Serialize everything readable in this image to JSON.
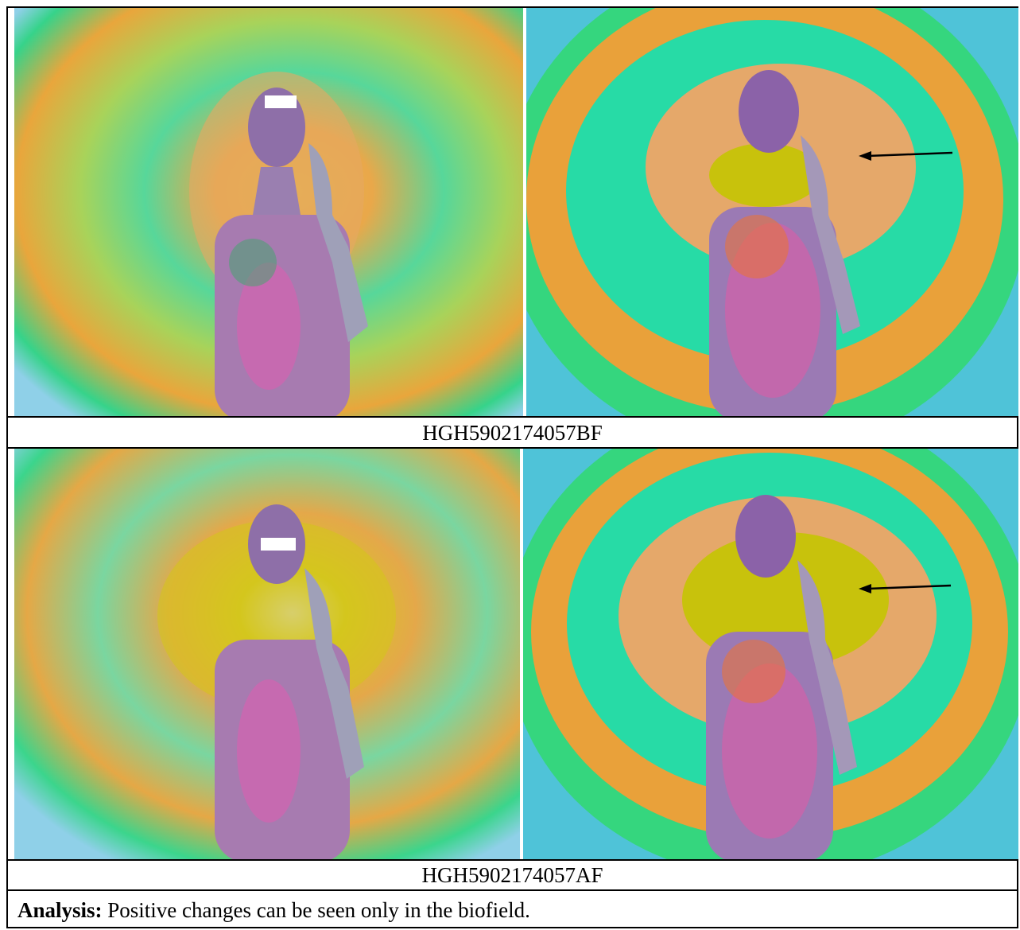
{
  "figure": {
    "rows": [
      {
        "caption": "HGH5902174057BF"
      },
      {
        "caption": "HGH5902174057AF"
      }
    ],
    "analysis": {
      "label": "Analysis:",
      "text": " Positive changes can be seen only in the biofield."
    }
  }
}
